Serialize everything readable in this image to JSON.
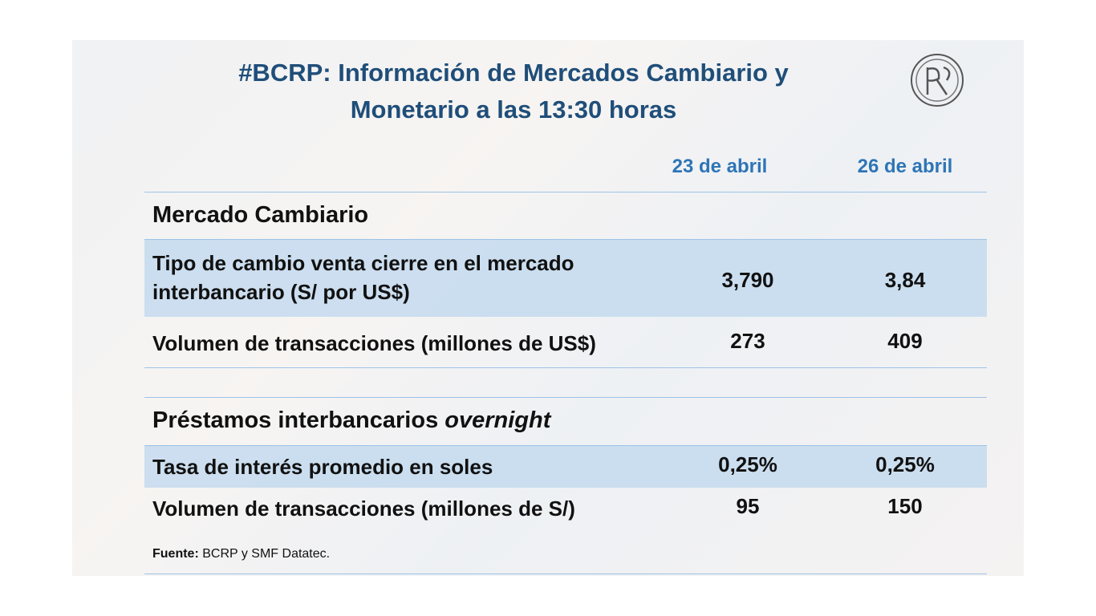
{
  "header": {
    "title": [
      "#BCRP: Información de Mercados Cambiario y",
      "Monetario a las 13:30 horas"
    ]
  },
  "table": {
    "columns": [
      "23 de abril",
      "26 de abril"
    ],
    "sections": [
      {
        "title": "Mercado Cambiario",
        "rows": [
          {
            "label": "Tipo de cambio venta cierre en el mercado interbancario (S/ por US$)",
            "values": [
              "3,790",
              "3,84"
            ]
          },
          {
            "label": "Volumen de transacciones (millones de US$)",
            "values": [
              "273",
              "409"
            ]
          }
        ]
      },
      {
        "title": "Préstamos interbancarios",
        "title_italic": "overnight",
        "rows": [
          {
            "label": "Tasa de interés promedio en soles",
            "values": [
              "0,25%",
              "0,25%"
            ]
          },
          {
            "label": "Volumen de transacciones (millones de S/)",
            "values": [
              "95",
              "150"
            ]
          }
        ]
      }
    ]
  },
  "footer": {
    "source_label": "Fuente:",
    "source": "BCRP y SMF Datatec."
  }
}
